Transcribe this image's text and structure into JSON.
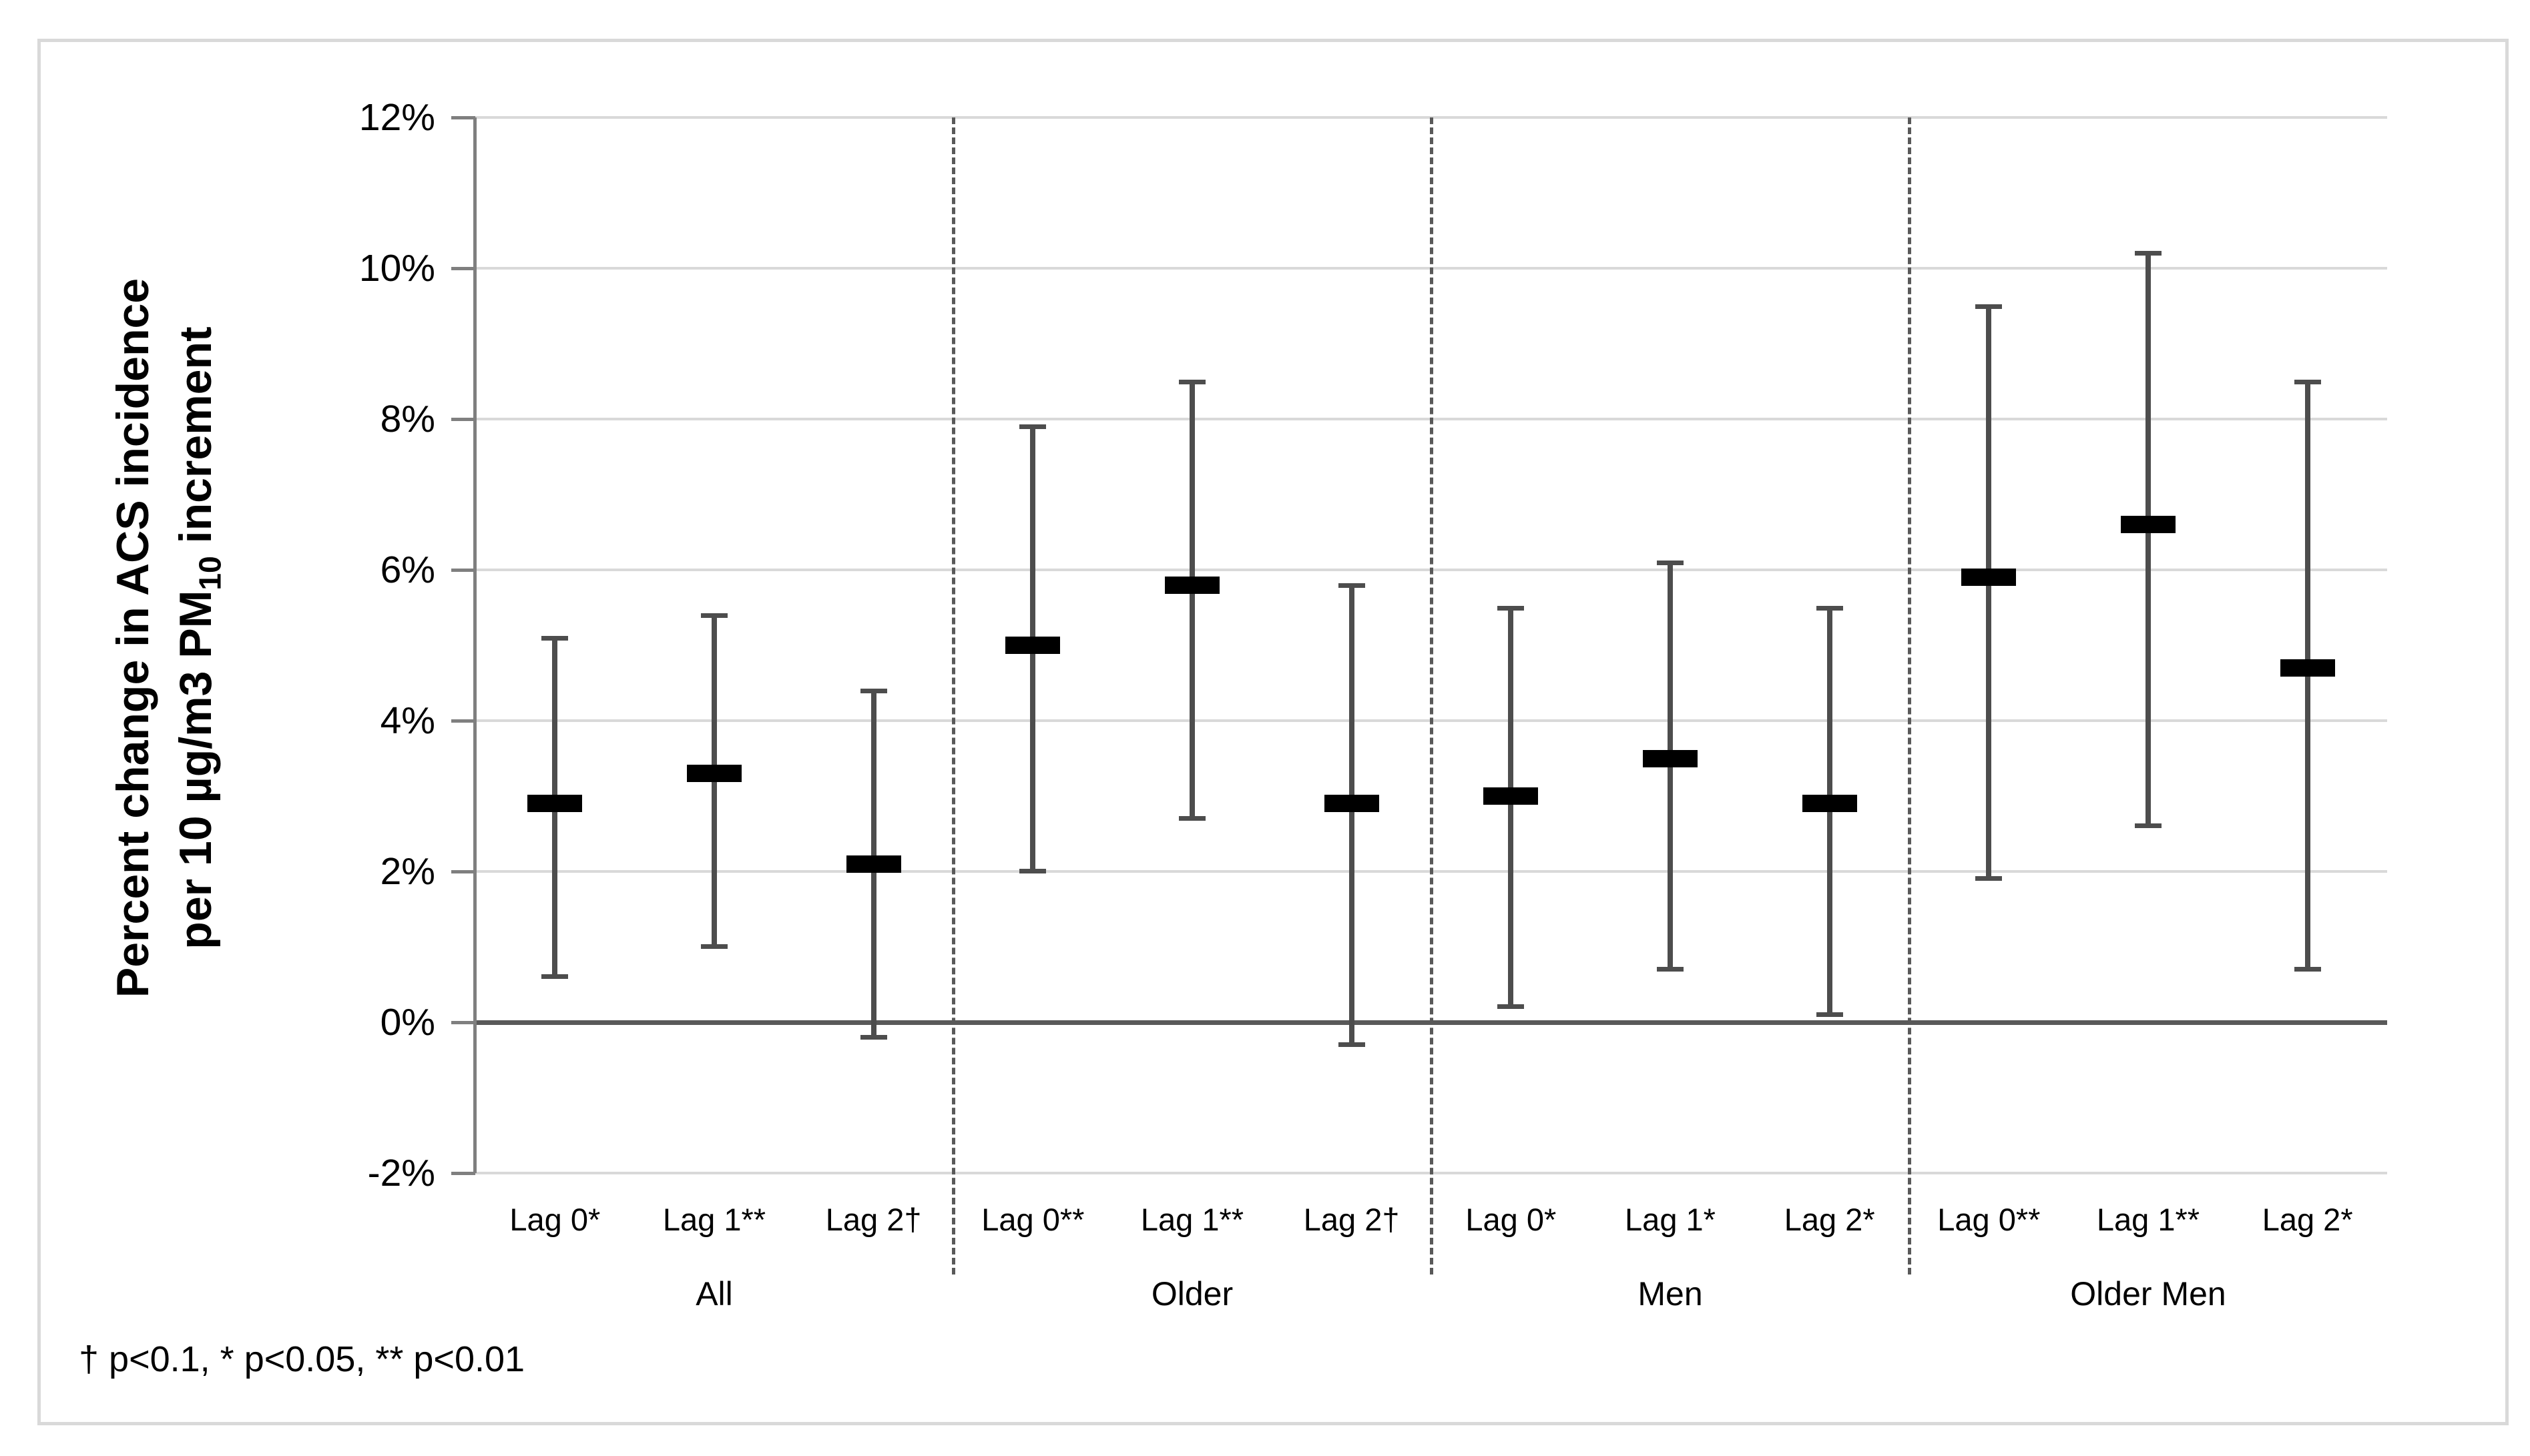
{
  "figure": {
    "ylabel_line1": "Percent change in ACS incidence",
    "ylabel_line2_pre": "per 10 µg/m3 PM",
    "ylabel_line2_sub": "10",
    "ylabel_line2_post": " increment",
    "footnote": "† p<0.1, * p<0.05, ** p<0.01"
  },
  "chart_data": {
    "type": "scatter",
    "subtype": "point_estimates_with_error_bars",
    "title": "",
    "xlabel": "",
    "ylabel": "Percent change in ACS incidence per 10 µg/m3 PM10 increment",
    "ylim": [
      -2,
      12
    ],
    "grid": "horizontal",
    "legend": "none",
    "yticks": [
      {
        "value": 12,
        "label": "12%"
      },
      {
        "value": 10,
        "label": "10%"
      },
      {
        "value": 8,
        "label": "8%"
      },
      {
        "value": 6,
        "label": "6%"
      },
      {
        "value": 4,
        "label": "4%"
      },
      {
        "value": 2,
        "label": "2%"
      },
      {
        "value": 0,
        "label": "0%"
      },
      {
        "value": -2,
        "label": "-2%"
      }
    ],
    "groups": [
      {
        "label": "All",
        "bars": [
          {
            "label": "Lag 0*",
            "estimate": 2.9,
            "ci_low": 0.6,
            "ci_high": 5.1
          },
          {
            "label": "Lag 1**",
            "estimate": 3.3,
            "ci_low": 1.0,
            "ci_high": 5.4
          },
          {
            "label": "Lag 2†",
            "estimate": 2.1,
            "ci_low": -0.2,
            "ci_high": 4.4
          }
        ]
      },
      {
        "label": "Older",
        "bars": [
          {
            "label": "Lag 0**",
            "estimate": 5.0,
            "ci_low": 2.0,
            "ci_high": 7.9
          },
          {
            "label": "Lag 1**",
            "estimate": 5.8,
            "ci_low": 2.7,
            "ci_high": 8.5
          },
          {
            "label": "Lag 2†",
            "estimate": 2.9,
            "ci_low": -0.3,
            "ci_high": 5.8
          }
        ]
      },
      {
        "label": "Men",
        "bars": [
          {
            "label": "Lag 0*",
            "estimate": 3.0,
            "ci_low": 0.2,
            "ci_high": 5.5
          },
          {
            "label": "Lag 1*",
            "estimate": 3.5,
            "ci_low": 0.7,
            "ci_high": 6.1
          },
          {
            "label": "Lag 2*",
            "estimate": 2.9,
            "ci_low": 0.1,
            "ci_high": 5.5
          }
        ]
      },
      {
        "label": "Older Men",
        "bars": [
          {
            "label": "Lag 0**",
            "estimate": 5.9,
            "ci_low": 1.9,
            "ci_high": 9.5
          },
          {
            "label": "Lag 1**",
            "estimate": 6.6,
            "ci_low": 2.6,
            "ci_high": 10.2
          },
          {
            "label": "Lag 2*",
            "estimate": 4.7,
            "ci_low": 0.7,
            "ci_high": 8.5
          }
        ]
      }
    ],
    "colors": {
      "estimate_bar": "#000000",
      "whisker": "#4d4d4d",
      "gridline": "#d9d9d9",
      "zero_line": "#595959",
      "axis": "#7f7f7f",
      "separator": "#595959",
      "frame_border": "#d9d9d9",
      "text": "#000000"
    }
  }
}
